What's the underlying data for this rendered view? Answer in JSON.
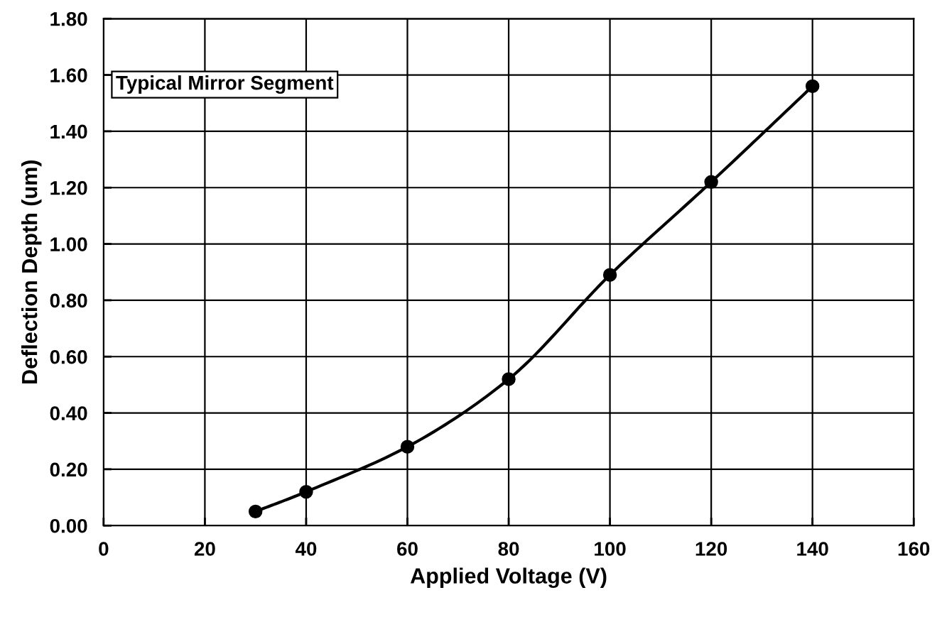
{
  "chart_data": {
    "type": "line",
    "xlabel": "Applied Voltage (V)",
    "ylabel": "Deflection Depth (um)",
    "annotations": [
      "Typical Mirror Segment"
    ],
    "x": [
      30,
      40,
      60,
      80,
      100,
      120,
      140
    ],
    "series": [
      {
        "color": "#000000",
        "values": [
          0.05,
          0.12,
          0.28,
          0.52,
          0.89,
          1.22,
          1.56
        ]
      }
    ],
    "xlim": [
      0,
      160
    ],
    "xticks": [
      0,
      20,
      40,
      60,
      80,
      100,
      120,
      140,
      160
    ],
    "ylim": [
      0,
      1.8
    ],
    "yticks": [
      {
        "value": 0,
        "label": "0.00"
      },
      {
        "value": 0.2,
        "label": "0.20"
      },
      {
        "value": 0.4,
        "label": "0.40"
      },
      {
        "value": 0.6,
        "label": "0.60"
      },
      {
        "value": 0.8,
        "label": "0.80"
      },
      {
        "value": 1.0,
        "label": "1.00"
      },
      {
        "value": 1.2,
        "label": "1.20"
      },
      {
        "value": 1.4,
        "label": "1.40"
      },
      {
        "value": 1.6,
        "label": "1.60"
      },
      {
        "value": 1.8,
        "label": "1.80"
      }
    ],
    "grid": true,
    "marker": "circle",
    "line_style": "solid",
    "legend": false
  }
}
